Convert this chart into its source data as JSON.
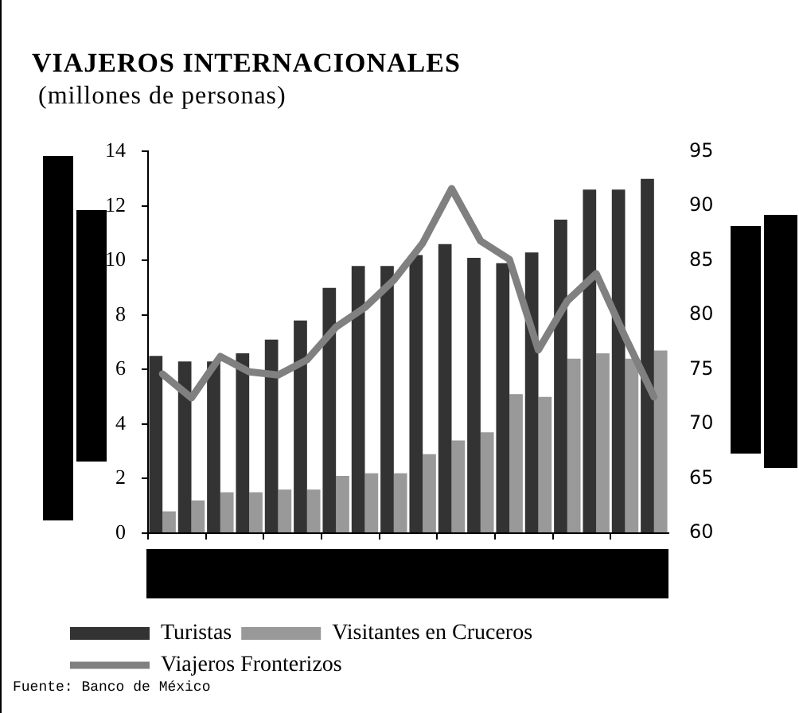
{
  "chart_data": {
    "type": "bar",
    "title": "VIAJEROS INTERNACIONALES",
    "subtitle": "(millones de personas)",
    "categories": [
      null,
      null,
      null,
      null,
      null,
      null,
      null,
      null,
      null,
      null,
      null,
      null,
      null,
      null,
      null,
      null,
      null,
      null
    ],
    "series": [
      {
        "name": "Turistas",
        "color": "#333333",
        "values": [
          6.5,
          6.3,
          6.3,
          6.6,
          7.1,
          7.8,
          9.0,
          9.8,
          9.8,
          10.2,
          10.6,
          10.1,
          9.9,
          10.3,
          11.5,
          12.6,
          12.6,
          13.0
        ]
      },
      {
        "name": "Visitantes en Cruceros",
        "color": "#999999",
        "values": [
          0.8,
          1.2,
          1.5,
          1.5,
          1.6,
          1.6,
          2.1,
          2.2,
          2.2,
          2.9,
          3.4,
          3.7,
          5.1,
          5.0,
          6.4,
          6.6,
          6.4,
          6.7
        ]
      },
      {
        "name": "Viajeros Fronterizos",
        "type": "line",
        "axis": "y2",
        "color": "#808080",
        "values": [
          74.6,
          72.4,
          76.2,
          74.8,
          74.5,
          75.9,
          78.9,
          80.7,
          83.2,
          86.6,
          91.6,
          86.8,
          85.1,
          76.8,
          81.3,
          83.8,
          78.0,
          72.5
        ]
      }
    ],
    "ylim": [
      0,
      14
    ],
    "yticks": [
      0,
      2,
      4,
      6,
      8,
      10,
      12,
      14
    ],
    "y2lim": [
      60,
      95
    ],
    "y2ticks": [
      60,
      65,
      70,
      75,
      80,
      85,
      90,
      95
    ],
    "grid": false,
    "legend": "bottom",
    "annotations": [
      "Fuente: Banco de México"
    ]
  }
}
